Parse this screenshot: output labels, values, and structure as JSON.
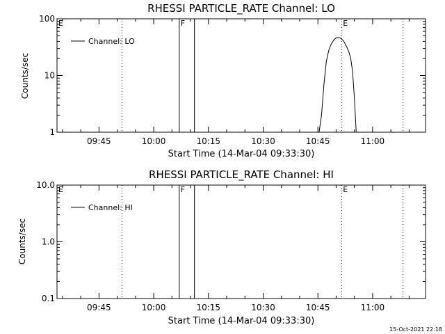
{
  "stamp": "15-Oct-2021 22:18",
  "chart_data": [
    {
      "type": "line",
      "title": "RHESSI PARTICLE_RATE Channel: LO",
      "xlabel": "Start Time (14-Mar-04 09:33:30)",
      "ylabel": "Counts/sec",
      "yscale": "log",
      "ylim": [
        1,
        100
      ],
      "xlim": [
        "09:33:30",
        "11:14:30"
      ],
      "x_ticks": [
        "09:45",
        "10:00",
        "10:15",
        "10:30",
        "10:45",
        "11:00"
      ],
      "y_ticks": [
        {
          "value": 1,
          "label": "1"
        },
        {
          "value": 10,
          "label": "10"
        },
        {
          "value": 100,
          "label": "100"
        }
      ],
      "legend": {
        "position": "top-left",
        "entries": [
          "Channel: LO"
        ]
      },
      "series": [
        {
          "name": "Channel: LO",
          "x": [
            "10:45:20",
            "10:46:00",
            "10:46:40",
            "10:47:20",
            "10:48:00",
            "10:48:40",
            "10:49:20",
            "10:50:00",
            "10:50:40",
            "10:51:20",
            "10:52:00",
            "10:52:30",
            "10:53:00",
            "10:53:30",
            "10:54:00",
            "10:54:30",
            "10:55:00",
            "10:55:30"
          ],
          "values": [
            1,
            2,
            7,
            18,
            28,
            36,
            42,
            46,
            47,
            45,
            41,
            36,
            31,
            26,
            20,
            12,
            4,
            1
          ]
        }
      ],
      "markers": [
        {
          "label": "E",
          "time": "09:33:30",
          "style": "none"
        },
        {
          "label": "",
          "time": "09:51:20",
          "style": "dotted"
        },
        {
          "label": "F",
          "time": "10:07:00",
          "style": "solid"
        },
        {
          "label": "",
          "time": "10:11:10",
          "style": "solid"
        },
        {
          "label": "E",
          "time": "10:51:30",
          "style": "dotted"
        },
        {
          "label": "",
          "time": "11:08:20",
          "style": "dotted"
        }
      ]
    },
    {
      "type": "line",
      "title": "RHESSI PARTICLE_RATE Channel: HI",
      "xlabel": "Start Time (14-Mar-04 09:33:30)",
      "ylabel": "Counts/sec",
      "yscale": "log",
      "ylim": [
        0.1,
        10
      ],
      "xlim": [
        "09:33:30",
        "11:14:30"
      ],
      "x_ticks": [
        "09:45",
        "10:00",
        "10:15",
        "10:30",
        "10:45",
        "11:00"
      ],
      "y_ticks": [
        {
          "value": 0.1,
          "label": "0.1"
        },
        {
          "value": 1,
          "label": "1.0"
        },
        {
          "value": 10,
          "label": "10.0"
        }
      ],
      "legend": {
        "position": "top-left",
        "entries": [
          "Channel: HI"
        ]
      },
      "series": [
        {
          "name": "Channel: HI",
          "x": [],
          "values": []
        }
      ],
      "markers": [
        {
          "label": "E",
          "time": "09:33:30",
          "style": "none"
        },
        {
          "label": "",
          "time": "09:51:20",
          "style": "dotted"
        },
        {
          "label": "F",
          "time": "10:07:00",
          "style": "solid"
        },
        {
          "label": "",
          "time": "10:11:10",
          "style": "solid"
        },
        {
          "label": "E",
          "time": "10:51:30",
          "style": "dotted"
        },
        {
          "label": "",
          "time": "11:08:20",
          "style": "dotted"
        }
      ]
    }
  ]
}
